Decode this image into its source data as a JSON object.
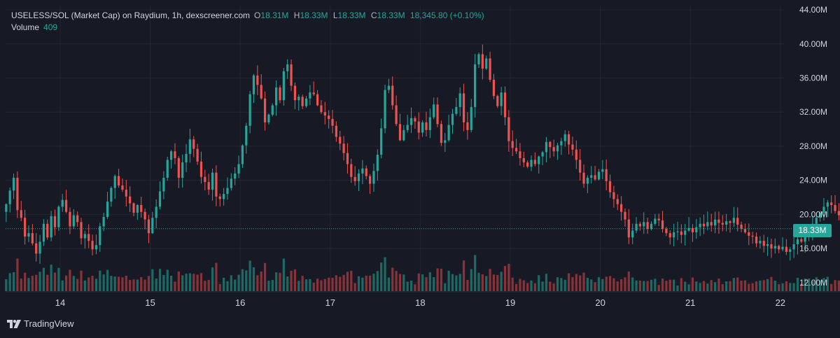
{
  "header": {
    "title": "USELESS/SOL (Market Cap) on Raydium, 1h, dexscreener.com",
    "ohlc": [
      {
        "key": "O",
        "value": "18.31M"
      },
      {
        "key": "H",
        "value": "18.33M"
      },
      {
        "key": "L",
        "value": "18.33M"
      },
      {
        "key": "C",
        "value": "18.33M"
      }
    ],
    "change": "18,345.80 (+0.10%)",
    "volume_label": "Volume",
    "volume_value": "409"
  },
  "current_price_label": "18.33M",
  "brand": "TradingView",
  "colors": {
    "background": "#171a25",
    "grid": "#232632",
    "up": "#26a69a",
    "down": "#ef5350",
    "up_volume": "#1c6a63",
    "down_volume": "#8a3238",
    "text": "#d1d4dc"
  },
  "chart_data": {
    "type": "candlestick",
    "interval": "1h",
    "price_unit": "M",
    "y_range": [
      11,
      44.5
    ],
    "y_ticks": [
      "44.00M",
      "40.00M",
      "36.00M",
      "32.00M",
      "28.00M",
      "24.00M",
      "20.00M",
      "16.00M",
      "12.00M"
    ],
    "y_tick_values": [
      44,
      40,
      36,
      32,
      28,
      24,
      20,
      16,
      12
    ],
    "x_ticks": [
      "14",
      "15",
      "16",
      "17",
      "18",
      "19",
      "20",
      "21",
      "22"
    ],
    "x_tick_positions_days": [
      0,
      1,
      2,
      3,
      4,
      5,
      6,
      7,
      8
    ],
    "start_offset_days": -0.6,
    "current_price": 18.33,
    "grid": true,
    "close": [
      21.2,
      22.8,
      24.3,
      20.5,
      19.6,
      17.4,
      17.8,
      16.6,
      15.4,
      16.8,
      18.9,
      17.3,
      19.8,
      18.5,
      20.9,
      21.7,
      20.3,
      18.6,
      19.9,
      19.1,
      17.2,
      17.7,
      16.9,
      15.9,
      16.4,
      18.6,
      19.7,
      21.5,
      23.1,
      24.5,
      23.4,
      22.9,
      22.1,
      21.3,
      20.2,
      21.1,
      20.3,
      19.4,
      17.8,
      19.6,
      20.9,
      22.7,
      24.3,
      26.4,
      27.4,
      26.6,
      24.3,
      26.1,
      27.1,
      28.8,
      27.7,
      26.2,
      24.4,
      23.8,
      22.9,
      24.9,
      22.1,
      21.8,
      22.4,
      23.1,
      24.2,
      24.8,
      25.9,
      28.1,
      30.4,
      34.1,
      36.3,
      35.2,
      33.6,
      30.8,
      31.7,
      32.8,
      34.9,
      33.4,
      36.8,
      37.6,
      35.1,
      33.4,
      33.8,
      32.7,
      33.6,
      34.3,
      34.1,
      32.8,
      32.0,
      31.6,
      31.2,
      30.4,
      29.1,
      28.3,
      27.2,
      25.9,
      24.4,
      23.9,
      24.8,
      25.4,
      24.5,
      23.6,
      25.1,
      27.0,
      30.1,
      34.6,
      35.1,
      32.8,
      30.6,
      28.7,
      29.9,
      30.5,
      31.3,
      30.9,
      29.6,
      30.8,
      29.9,
      31.4,
      32.9,
      30.6,
      28.4,
      28.7,
      30.5,
      31.8,
      32.6,
      34.2,
      30.8,
      29.9,
      32.6,
      37.6,
      38.8,
      37.1,
      38.3,
      35.8,
      33.9,
      32.7,
      34.3,
      31.4,
      28.6,
      27.8,
      27.4,
      26.6,
      26.1,
      25.6,
      26.4,
      25.9,
      26.8,
      27.3,
      28.5,
      27.9,
      27.4,
      28.1,
      28.6,
      29.4,
      28.2,
      27.6,
      26.4,
      24.9,
      23.6,
      24.3,
      24.6,
      24.1,
      25.0,
      25.3,
      23.9,
      22.6,
      21.8,
      21.2,
      20.3,
      19.4,
      17.3,
      18.1,
      18.9,
      18.6,
      19.1,
      18.3,
      18.9,
      19.5,
      19.3,
      18.3,
      17.8,
      17.3,
      17.9,
      18.0,
      17.6,
      18.1,
      18.4,
      17.9,
      18.5,
      18.9,
      18.6,
      19.1,
      18.7,
      19.4,
      19.0,
      18.8,
      19.2,
      19.0,
      19.6,
      18.8,
      18.3,
      17.9,
      17.5,
      17.4,
      16.6,
      16.9,
      16.3,
      16.5,
      16.0,
      16.3,
      15.9,
      16.2,
      15.6,
      15.9,
      16.5,
      17.1,
      16.8,
      17.6,
      18.0,
      18.9,
      19.6,
      20.2,
      20.9,
      21.4,
      21.1,
      20.4,
      19.9,
      20.6,
      21.2,
      21.0,
      20.1,
      19.3,
      19.8,
      20.7,
      19.6,
      18.6,
      18.31,
      18.33
    ],
    "open_first": 20.3,
    "volume_range": [
      0,
      1
    ],
    "volume_max_display": 1.0
  }
}
